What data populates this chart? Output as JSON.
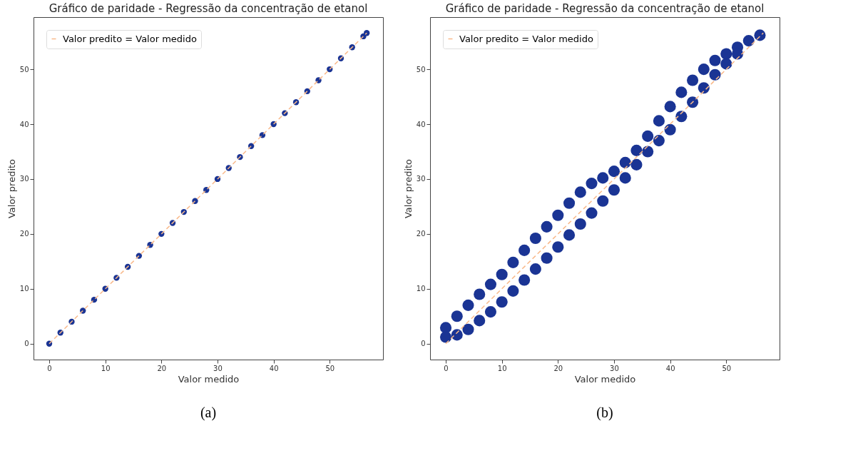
{
  "chart_data": [
    {
      "type": "scatter",
      "title": "Gráfico de paridade - Regressão da concentração de etanol",
      "xlabel": "Valor medido",
      "ylabel": "Valor predito",
      "xlim": [
        -2.8,
        59.5
      ],
      "ylim": [
        -2.9,
        59.5
      ],
      "xticks": [
        0,
        10,
        20,
        30,
        40,
        50
      ],
      "yticks": [
        0,
        10,
        20,
        30,
        40,
        50
      ],
      "legend": "top left",
      "annotations": [
        "(a)"
      ],
      "series": [
        {
          "color": "#1a3494",
          "marker": "circle",
          "x": [
            0,
            2,
            4,
            6,
            8,
            10,
            12,
            14,
            16,
            18,
            20,
            22,
            24,
            26,
            28,
            30,
            32,
            34,
            36,
            38,
            40,
            42,
            44,
            46,
            48,
            50,
            52,
            54,
            56,
            56.6
          ],
          "values": [
            0,
            2,
            4,
            6,
            8,
            10,
            12,
            14,
            16,
            18,
            20,
            22,
            24,
            26,
            28,
            30,
            32,
            34,
            36,
            38,
            40,
            42,
            44,
            46,
            48,
            50,
            52,
            54,
            56,
            56.6
          ]
        },
        {
          "type": "line",
          "name": "Valor predito = Valor medido",
          "color": "#f9b98a",
          "line_style": "dashed",
          "x": [
            0,
            56.6
          ],
          "values": [
            0,
            56.6
          ]
        }
      ]
    },
    {
      "type": "scatter",
      "title": "Gráfico de paridade - Regressão da concentração de etanol",
      "xlabel": "Valor medido",
      "ylabel": "Valor predito",
      "xlim": [
        -2.8,
        59.5
      ],
      "ylim": [
        -2.9,
        59.5
      ],
      "xticks": [
        0,
        10,
        20,
        30,
        40,
        50
      ],
      "yticks": [
        0,
        10,
        20,
        30,
        40,
        50
      ],
      "legend": "top left",
      "annotations": [
        "(b)"
      ],
      "series": [
        {
          "color": "#1a3494",
          "marker": "circle",
          "x": [
            0,
            2,
            4,
            6,
            8,
            10,
            12,
            14,
            16,
            18,
            20,
            22,
            24,
            26,
            28,
            30,
            32,
            34,
            36,
            38,
            40,
            42,
            44,
            46,
            48,
            50,
            52,
            54,
            56,
            0,
            2,
            4,
            6,
            8,
            10,
            12,
            14,
            16,
            18,
            20,
            22,
            24,
            26,
            28,
            30,
            32,
            34,
            36,
            38,
            40,
            42,
            44,
            46,
            48,
            50,
            52
          ],
          "values": [
            2.9,
            5.0,
            7.0,
            9.0,
            10.8,
            12.6,
            14.8,
            17.0,
            19.2,
            21.3,
            23.4,
            25.6,
            27.6,
            29.2,
            30.2,
            31.4,
            33.0,
            35.2,
            37.8,
            40.6,
            43.2,
            45.8,
            48.0,
            50.0,
            51.6,
            52.8,
            54.0,
            55.2,
            56.2,
            1.2,
            1.6,
            2.6,
            4.2,
            5.8,
            7.6,
            9.6,
            11.6,
            13.6,
            15.6,
            17.6,
            19.8,
            21.8,
            23.8,
            26.0,
            28.0,
            30.2,
            32.6,
            35.0,
            37.0,
            39.0,
            41.4,
            44.0,
            46.6,
            49.0,
            51.0,
            52.8
          ]
        },
        {
          "type": "line",
          "name": "Valor predito = Valor medido",
          "color": "#f9b98a",
          "line_style": "dashed",
          "x": [
            0,
            56.6
          ],
          "values": [
            0,
            56.6
          ]
        }
      ]
    }
  ]
}
